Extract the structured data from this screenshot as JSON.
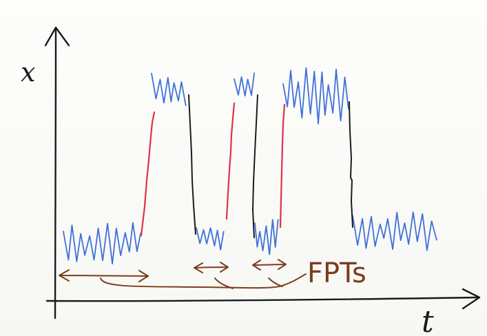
{
  "diagram": {
    "y_axis_label": "x",
    "x_axis_label": "t",
    "annotation_label": "FPTs",
    "colors": {
      "signal": "#3f70d9",
      "up_transition": "#e0304a",
      "down_transition": "#1b1b1b",
      "annotation": "#7a3d1c",
      "axes": "#1a1a1a"
    }
  }
}
